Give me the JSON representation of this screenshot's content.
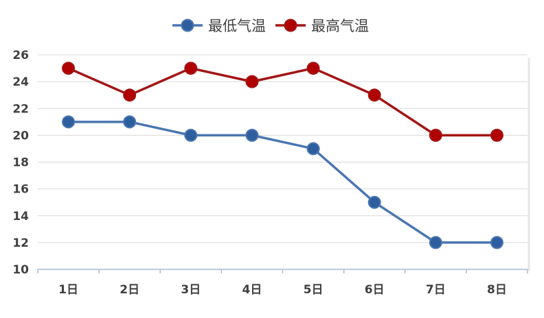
{
  "chart_data": {
    "type": "line",
    "categories": [
      "1日",
      "2日",
      "3日",
      "4日",
      "5日",
      "6日",
      "7日",
      "8日"
    ],
    "series": [
      {
        "name": "最低气温",
        "values": [
          21,
          21,
          20,
          20,
          19,
          15,
          12,
          12
        ],
        "color": "#4a76b0",
        "marker_color": "#2f5e9f"
      },
      {
        "name": "最高气温",
        "values": [
          25,
          23,
          25,
          24,
          25,
          23,
          20,
          20
        ],
        "color": "#a31515",
        "marker_color": "#b00000"
      }
    ],
    "ylim": [
      10,
      26
    ],
    "yticks": [
      "10",
      "12",
      "14",
      "16",
      "18",
      "20",
      "22",
      "24",
      "26"
    ],
    "grid": true,
    "legend_position": "top-center"
  }
}
